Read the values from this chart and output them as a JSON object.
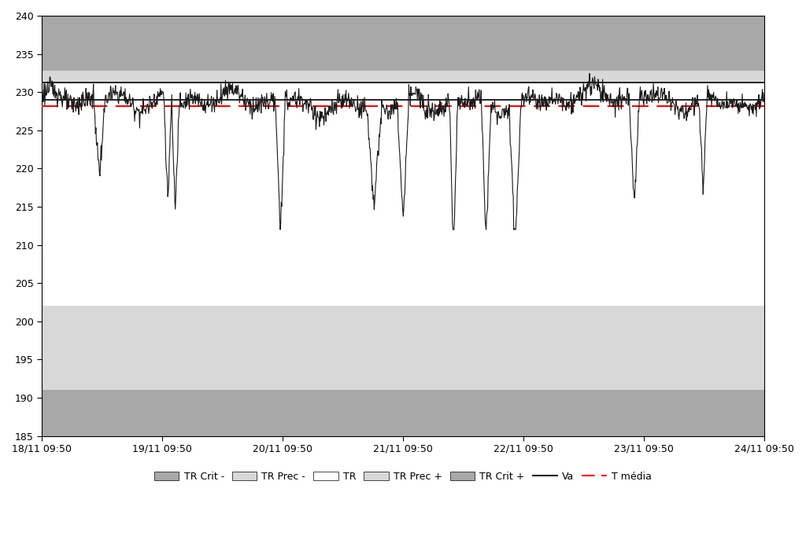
{
  "ylim": [
    185,
    240
  ],
  "yticks": [
    185,
    190,
    195,
    200,
    205,
    210,
    215,
    220,
    225,
    230,
    235,
    240
  ],
  "xtick_labels": [
    "18/11 09:50",
    "19/11 09:50",
    "20/11 09:50",
    "21/11 09:50",
    "22/11 09:50",
    "23/11 09:50",
    "24/11 09:50"
  ],
  "n_points": 1440,
  "tr_crit_minus_low": 185,
  "tr_crit_minus_high": 191.0,
  "tr_prec_minus_low": 191.0,
  "tr_prec_minus_high": 202.0,
  "tr_low": 229.0,
  "tr_high": 231.3,
  "tr_prec_plus_low": 231.3,
  "tr_prec_plus_high": 232.8,
  "tr_crit_plus_low": 232.8,
  "tr_crit_plus_high": 240,
  "tr_upper_line": 231.3,
  "tr_lower_line": 229.0,
  "t_media": 228.2,
  "color_crit": "#a8a8a8",
  "color_prec": "#d8d8d8",
  "color_tr": "#ffffff",
  "color_va": "#1a1a1a",
  "color_t_media": "#ff0000",
  "background_color": "#ffffff",
  "legend_labels": [
    "TR Crit -",
    "TR Prec -",
    "TR",
    "TR Prec +",
    "TR Crit +",
    "Va",
    "T média"
  ]
}
